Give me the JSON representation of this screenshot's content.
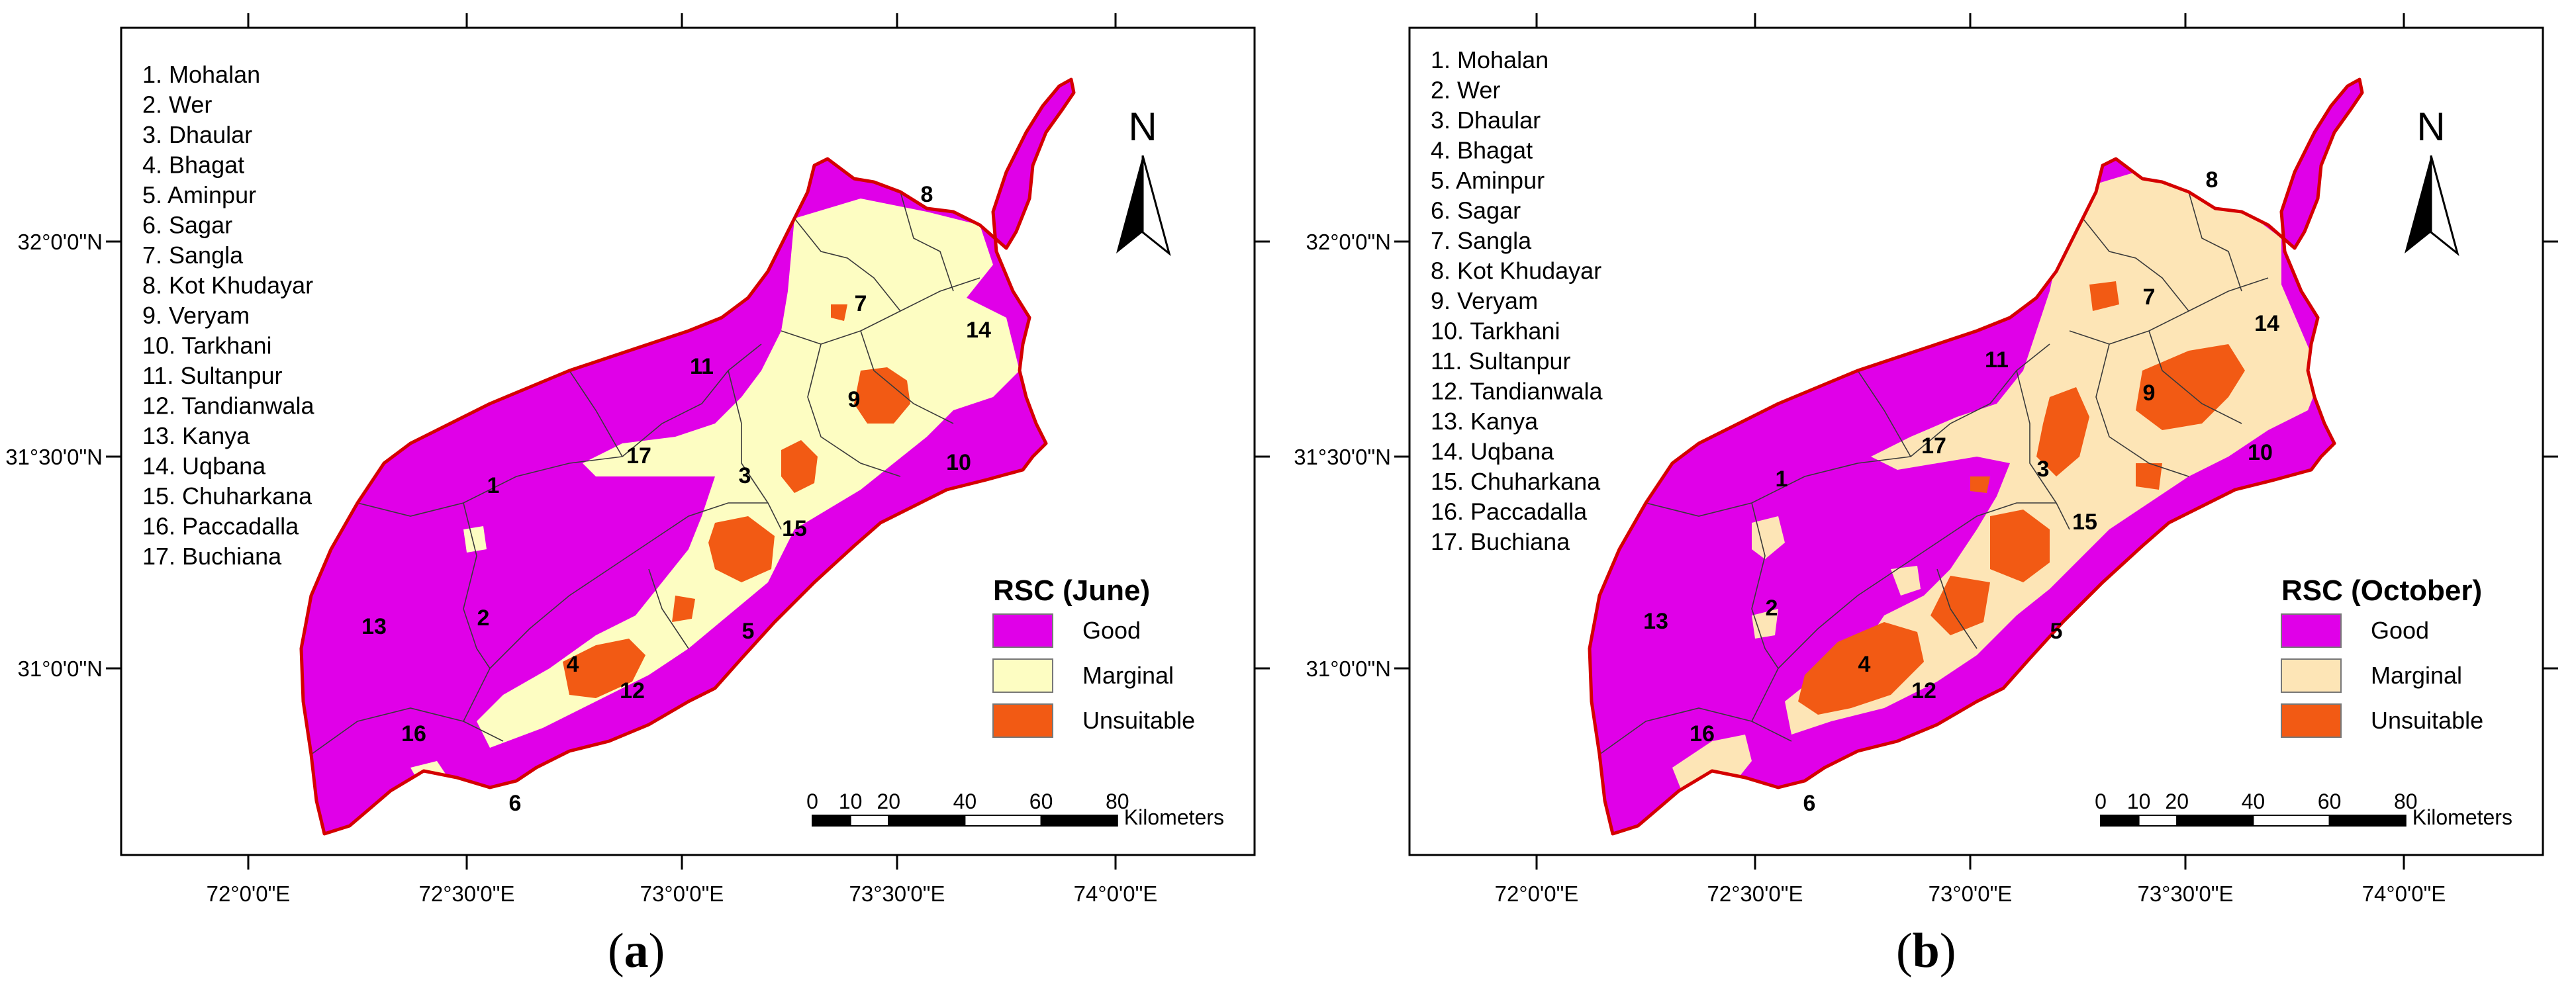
{
  "panels": [
    {
      "caption": "a",
      "legend_title": "RSC (June)",
      "marginal_color": "#fdfdc2"
    },
    {
      "caption": "b",
      "legend_title": "RSC (October)",
      "marginal_color": "#fde5b6"
    }
  ],
  "districts": [
    "1. Mohalan",
    "2. Wer",
    "3. Dhaular",
    "4. Bhagat",
    "5. Aminpur",
    "6. Sagar",
    "7. Sangla",
    "8. Kot Khudayar",
    "9. Veryam",
    "10. Tarkhani",
    "11. Sultanpur",
    "12. Tandianwala",
    "13. Kanya",
    "14. Uqbana",
    "15. Chuharkana",
    "16. Paccadalla",
    "17. Buchiana"
  ],
  "legend_items": [
    "Good",
    "Marginal",
    "Unsuitable"
  ],
  "colors": {
    "good": "#e000e8",
    "unsuitable": "#f25a14",
    "boundary": "#d40000",
    "frame": "#000000"
  },
  "north_label": "N",
  "scale_numbers": [
    "0",
    "10",
    "20",
    "40",
    "60",
    "80"
  ],
  "scale_unit": "Kilometers",
  "lon_labels": [
    "72°0'0\"E",
    "72°30'0\"E",
    "73°0'0\"E",
    "73°30'0\"E",
    "74°0'0\"E"
  ],
  "lat_labels": [
    "32°0'0\"N",
    "31°30'0\"N",
    "31°0'0\"N"
  ],
  "map_labels": [
    "1",
    "2",
    "3",
    "4",
    "5",
    "6",
    "7",
    "8",
    "9",
    "10",
    "11",
    "12",
    "13",
    "14",
    "15",
    "16",
    "17"
  ],
  "caption_format": "(letter)"
}
